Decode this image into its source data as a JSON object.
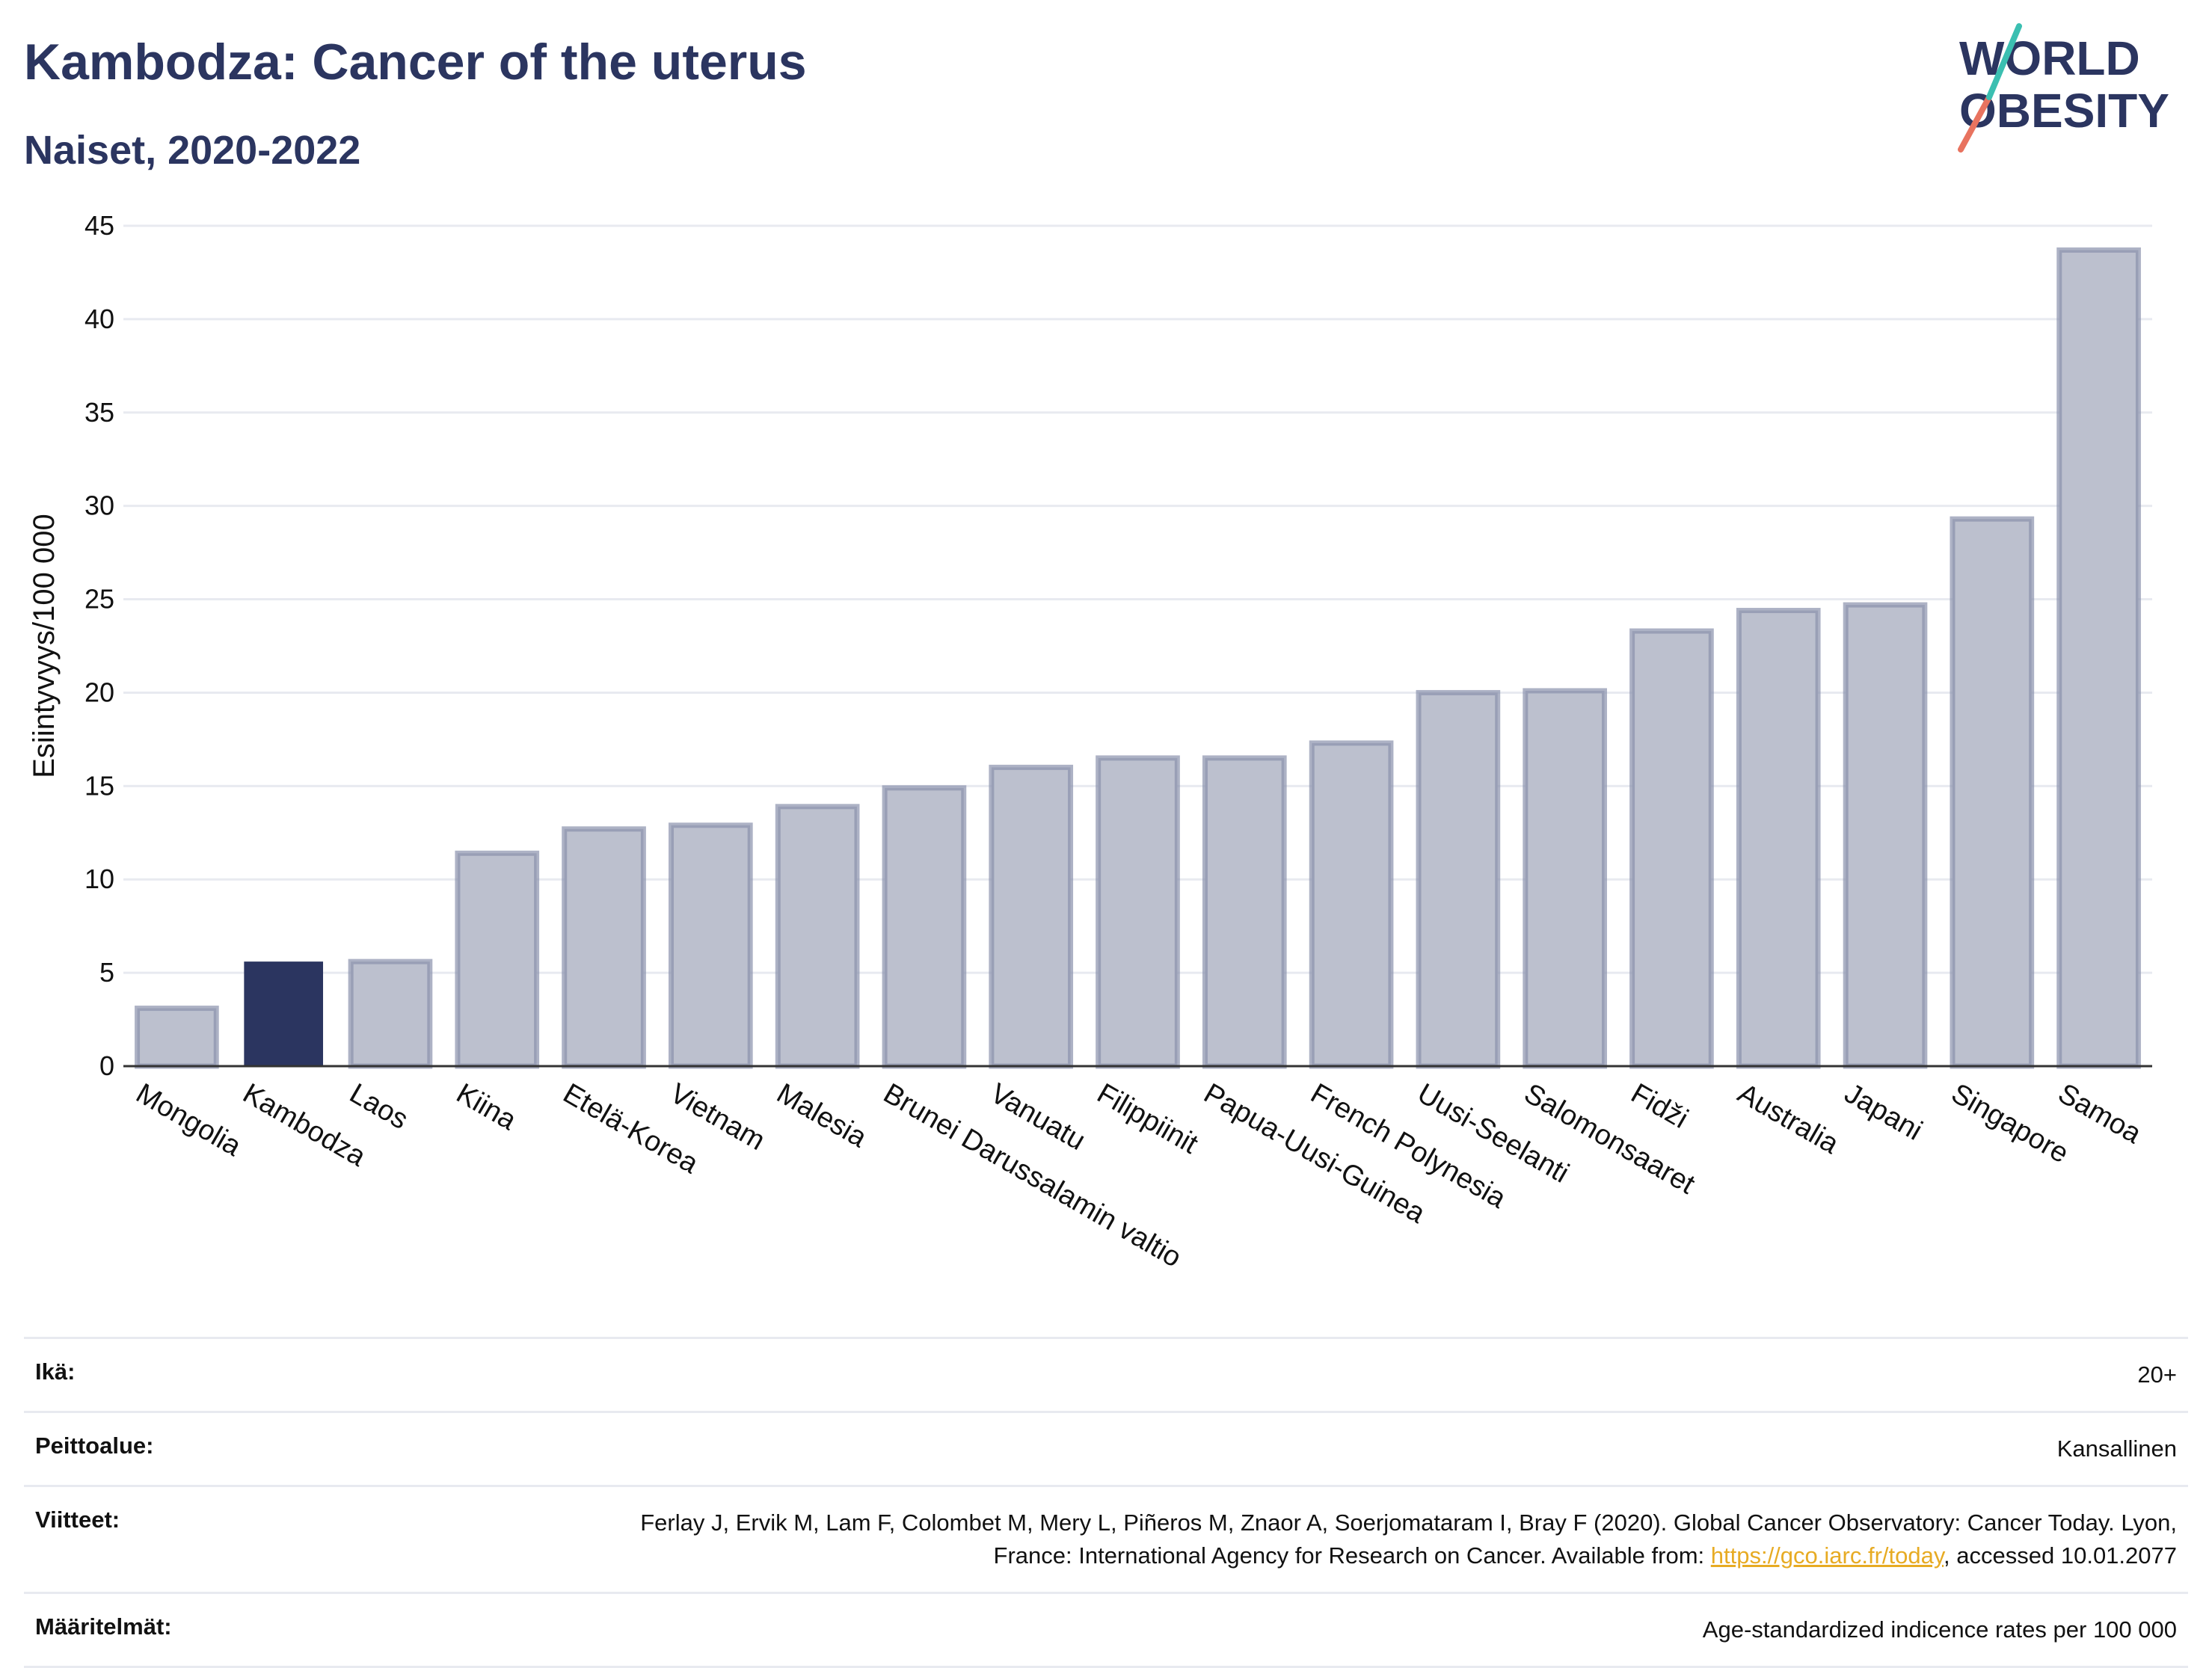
{
  "header": {
    "title": "Kambodza: Cancer of the uterus",
    "subtitle": "Naiset, 2020-2022"
  },
  "logo": {
    "line1": "WORLD",
    "line2": "OBESITY"
  },
  "colors": {
    "highlight": "#2b3560",
    "bar": "#bcc0ce",
    "bar_border": "#8a92ad",
    "title": "#2b3560",
    "grid": "#e8eaf0",
    "link": "#e7ab23"
  },
  "chart_data": {
    "type": "bar",
    "ylabel": "Esiintyvyys/100 000",
    "ylim": [
      0,
      45
    ],
    "yticks": [
      0,
      5,
      10,
      15,
      20,
      25,
      30,
      35,
      40,
      45
    ],
    "grid": true,
    "highlight": "Kambodza",
    "categories": [
      "Mongolia",
      "Kambodza",
      "Laos",
      "Kiina",
      "Etelä-Korea",
      "Vietnam",
      "Malesia",
      "Brunei Darussalamin valtio",
      "Vanuatu",
      "Filippiinit",
      "Papua-Uusi-Guinea",
      "French Polynesia",
      "Uusi-Seelanti",
      "Salomonsaaret",
      "Fidži",
      "Australia",
      "Japani",
      "Singapore",
      "Samoa"
    ],
    "values": [
      3.1,
      5.6,
      5.6,
      11.4,
      12.7,
      12.9,
      13.9,
      14.9,
      16.0,
      16.5,
      16.5,
      17.3,
      20.0,
      20.1,
      23.3,
      24.4,
      24.7,
      29.3,
      43.7
    ]
  },
  "meta": {
    "age_label": "Ikä:",
    "age_value": "20+",
    "coverage_label": "Peittoalue:",
    "coverage_value": "Kansallinen",
    "refs_label": "Viitteet:",
    "refs_text_1": "Ferlay J, Ervik M, Lam F, Colombet M, Mery L, Piñeros M, Znaor A, Soerjomataram I, Bray F (2020). Global Cancer Observatory: Cancer Today. Lyon, France: International Agency for Research on Cancer. Available from: ",
    "refs_link": "https://gco.iarc.fr/today",
    "refs_text_2": ", accessed 10.01.2077",
    "defs_label": "Määritelmät:",
    "defs_value": "Age-standardized indicence rates per 100 000"
  }
}
